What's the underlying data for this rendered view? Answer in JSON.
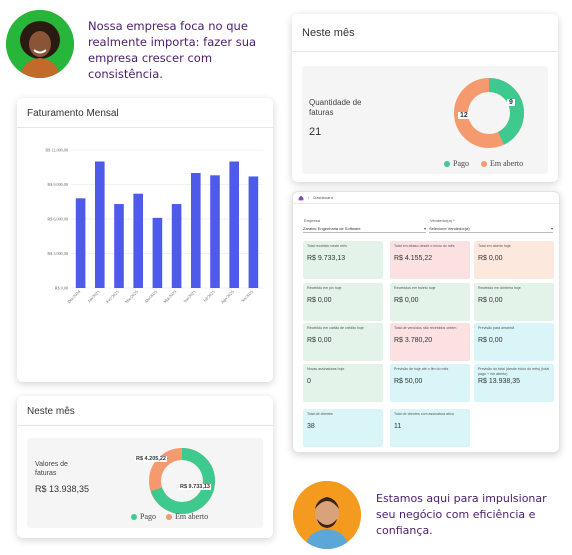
{
  "top_quote": "Nossa empresa foca no que realmente importa: fazer sua empresa crescer com consistência.",
  "bottom_quote": "Estamos aqui para impulsionar seu negócio com eficiência e confiança.",
  "colors": {
    "bar": "#4e5ae8",
    "paid": "#3ec98e",
    "open": "#f59a6e",
    "quote_text": "#4a1d6b"
  },
  "faturamento": {
    "title": "Faturamento Mensal",
    "chart_data": {
      "type": "bar",
      "title": "Faturamento Mensal",
      "categories": [
        "Dez/2024",
        "Jan/2025",
        "Fev/2025",
        "Mar/2025",
        "Abr/2025",
        "Mai/2025",
        "Jun/2025",
        "Jul/2025",
        "Ago/2025",
        "Set/2025"
      ],
      "values": [
        7800,
        11000,
        7300,
        8200,
        6100,
        7300,
        10000,
        9800,
        11000,
        9700
      ],
      "ylim": [
        0,
        12000
      ],
      "yticks": [
        "R$ 0,00",
        "R$ 3.000,00",
        "R$ 6.000,00",
        "R$ 9.000,00",
        "R$ 12.000,00"
      ],
      "grid": true
    }
  },
  "neste_mes_valores": {
    "title": "Neste mês",
    "label": "Valores de faturas",
    "value": "R$ 13.938,35",
    "donut": {
      "paid": 9733.13,
      "open": 4205.22,
      "paid_label": "R$ 9.733,13",
      "open_label": "R$ 4.205,22"
    },
    "legend_paid": "Pago",
    "legend_open": "Em aberto"
  },
  "neste_mes_quantidade": {
    "title": "Neste mês",
    "label": "Quantidade de faturas",
    "value": "21",
    "donut": {
      "paid": 9,
      "open": 12,
      "paid_label": "9",
      "open_label": "12"
    },
    "legend_paid": "Pago",
    "legend_open": "Em aberto"
  },
  "dashboard": {
    "breadcrumb": "Dashboard",
    "empresa_label": "Empresa",
    "empresa_value": "Zaratec Engenharia de Software",
    "vendedor_label": "Vendedor(a) *",
    "vendedor_value": "Selecione Vendedor(a)",
    "tiles": [
      {
        "title": "Total recebido neste mês",
        "value": "R$ 9.733,13",
        "color": "green"
      },
      {
        "title": "Total em atraso desde o início do mês",
        "value": "R$ 4.155,22",
        "color": "red"
      },
      {
        "title": "Total em aberto hoje",
        "value": "R$ 0,00",
        "color": "orange"
      },
      {
        "title": "Recebido em pix hoje",
        "value": "R$ 0,00",
        "color": "green"
      },
      {
        "title": "Recebidos em boleto hoje",
        "value": "R$ 0,00",
        "color": "green"
      },
      {
        "title": "Recebido em dinheiro hoje",
        "value": "R$ 0,00",
        "color": "green"
      },
      {
        "title": "Recebido em cartão de crédito hoje",
        "value": "R$ 0,00",
        "color": "green"
      },
      {
        "title": "Total de vencidos não recebidos ontem",
        "value": "R$ 3.780,20",
        "color": "red"
      },
      {
        "title": "Previsão para amanhã",
        "value": "R$ 0,00",
        "color": "cyan"
      },
      {
        "title": "Novas assinaturas hoje",
        "value": "0",
        "color": "green"
      },
      {
        "title": "Previsão de hoje até o fim do mês",
        "value": "R$ 50,00",
        "color": "cyan"
      },
      {
        "title": "Previsão do total (desde início do mês) (total pago + em aberto)",
        "value": "R$ 13.938,35",
        "color": "cyan"
      },
      {
        "title": "Total de clientes",
        "value": "38",
        "color": "cyan"
      },
      {
        "title": "Total de clientes com assinatura ativa",
        "value": "11",
        "color": "cyan"
      }
    ]
  }
}
